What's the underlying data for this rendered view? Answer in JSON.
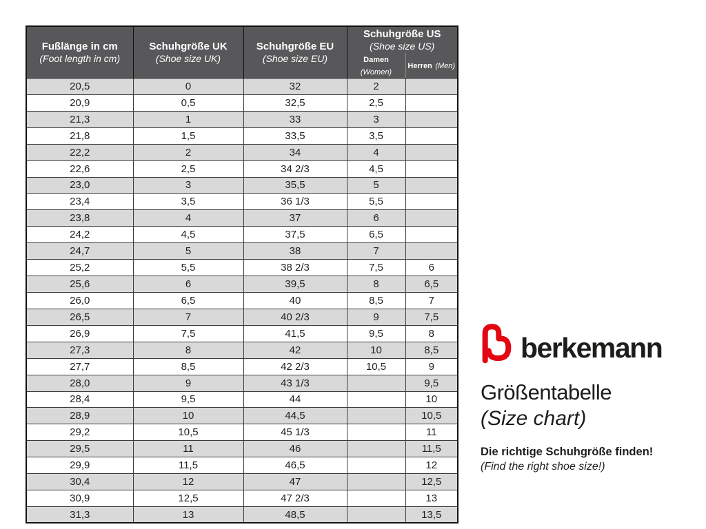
{
  "table": {
    "columns": [
      {
        "line1": "Fußlänge in cm",
        "line2": "(Foot length in cm)"
      },
      {
        "line1": "Schuhgröße UK",
        "line2": "(Shoe size UK)"
      },
      {
        "line1": "Schuhgröße EU",
        "line2": "(Shoe size EU)"
      },
      {
        "line1": "Schuhgröße US",
        "line2": "(Shoe size US)"
      }
    ],
    "sub_columns": [
      {
        "label": "Damen",
        "label_en": "(Women)"
      },
      {
        "label": "Herren",
        "label_en": "(Men)"
      }
    ],
    "rows": [
      [
        "20,5",
        "0",
        "32",
        "2",
        ""
      ],
      [
        "20,9",
        "0,5",
        "32,5",
        "2,5",
        ""
      ],
      [
        "21,3",
        "1",
        "33",
        "3",
        ""
      ],
      [
        "21,8",
        "1,5",
        "33,5",
        "3,5",
        ""
      ],
      [
        "22,2",
        "2",
        "34",
        "4",
        ""
      ],
      [
        "22,6",
        "2,5",
        "34 2/3",
        "4,5",
        ""
      ],
      [
        "23,0",
        "3",
        "35,5",
        "5",
        ""
      ],
      [
        "23,4",
        "3,5",
        "36 1/3",
        "5,5",
        ""
      ],
      [
        "23,8",
        "4",
        "37",
        "6",
        ""
      ],
      [
        "24,2",
        "4,5",
        "37,5",
        "6,5",
        ""
      ],
      [
        "24,7",
        "5",
        "38",
        "7",
        ""
      ],
      [
        "25,2",
        "5,5",
        "38 2/3",
        "7,5",
        "6"
      ],
      [
        "25,6",
        "6",
        "39,5",
        "8",
        "6,5"
      ],
      [
        "26,0",
        "6,5",
        "40",
        "8,5",
        "7"
      ],
      [
        "26,5",
        "7",
        "40 2/3",
        "9",
        "7,5"
      ],
      [
        "26,9",
        "7,5",
        "41,5",
        "9,5",
        "8"
      ],
      [
        "27,3",
        "8",
        "42",
        "10",
        "8,5"
      ],
      [
        "27,7",
        "8,5",
        "42 2/3",
        "10,5",
        "9"
      ],
      [
        "28,0",
        "9",
        "43 1/3",
        "",
        "9,5"
      ],
      [
        "28,4",
        "9,5",
        "44",
        "",
        "10"
      ],
      [
        "28,9",
        "10",
        "44,5",
        "",
        "10,5"
      ],
      [
        "29,2",
        "10,5",
        "45 1/3",
        "",
        "11"
      ],
      [
        "29,5",
        "11",
        "46",
        "",
        "11,5"
      ],
      [
        "29,9",
        "11,5",
        "46,5",
        "",
        "12"
      ],
      [
        "30,4",
        "12",
        "47",
        "",
        "12,5"
      ],
      [
        "30,9",
        "12,5",
        "47 2/3",
        "",
        "13"
      ],
      [
        "31,3",
        "13",
        "48,5",
        "",
        "13,5"
      ]
    ],
    "colors": {
      "header_bg": "#58585a",
      "header_text": "#ffffff",
      "row_alt_bg": "#d9d9d9",
      "row_bg": "#ffffff",
      "border": "#3b3b3b",
      "outer_border": "#111111",
      "cell_text": "#222222"
    }
  },
  "brand": {
    "logo_icon": "berkemann-b-logo",
    "logo_color": "#e30613",
    "wordmark": "berkemann",
    "title_de": "Größentabelle",
    "title_en": "(Size chart)",
    "tagline_de": "Die richtige Schuhgröße finden!",
    "tagline_en": "(Find the right shoe size!)"
  }
}
